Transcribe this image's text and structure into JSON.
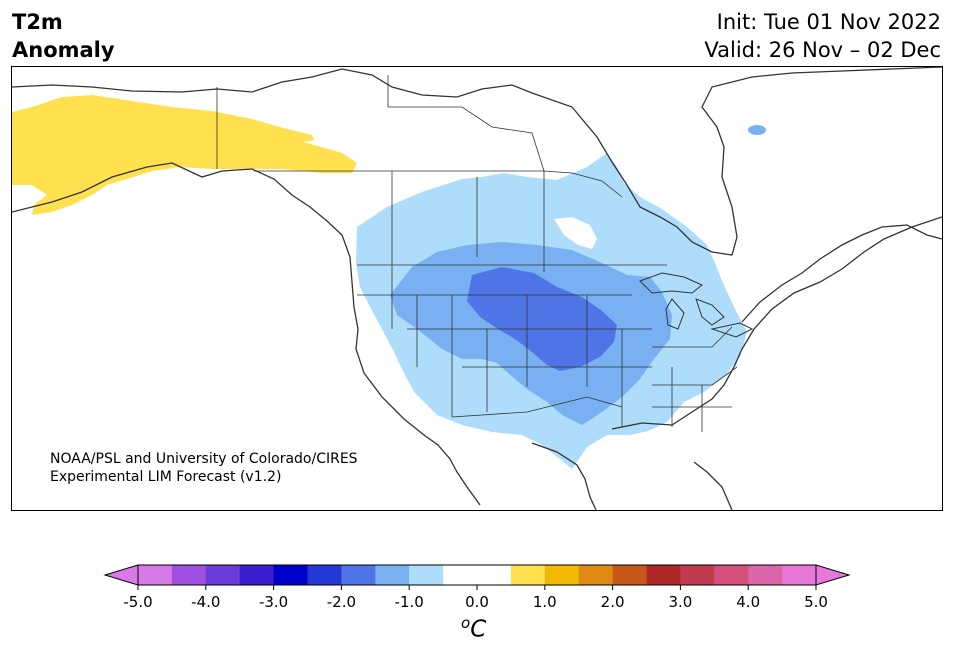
{
  "header": {
    "title_line1": "T2m",
    "title_line2": "Anomaly",
    "init": "Init: Tue 01 Nov 2022",
    "valid": "Valid: 26 Nov – 02 Dec"
  },
  "map": {
    "credit_line1": "NOAA/PSL and University of Colorado/CIRES",
    "credit_line2": "Experimental LIM Forecast (v1.2)",
    "region": "North America",
    "features": [
      "coastlines",
      "country-borders",
      "state-borders",
      "anomaly-contours"
    ]
  },
  "colorbar": {
    "tick_labels": [
      "-5.0",
      "-4.0",
      "-3.0",
      "-2.0",
      "-1.0",
      "0.0",
      "1.0",
      "2.0",
      "3.0",
      "4.0",
      "5.0"
    ],
    "unit_sup": "o",
    "unit": "C",
    "colors": [
      "#d879e8",
      "#a050e0",
      "#6b3bdc",
      "#3a1ed0",
      "#0000cc",
      "#2338d6",
      "#4f74e6",
      "#78b0f2",
      "#aedcfb",
      "#ffffff",
      "#ffffff",
      "#ffe150",
      "#f3b900",
      "#e08a14",
      "#c85818",
      "#b02828",
      "#c23a50",
      "#d4507a",
      "#dc64a8",
      "#e878d8"
    ],
    "extend_low_color": "#d879e8",
    "extend_high_color": "#e878d8"
  }
}
